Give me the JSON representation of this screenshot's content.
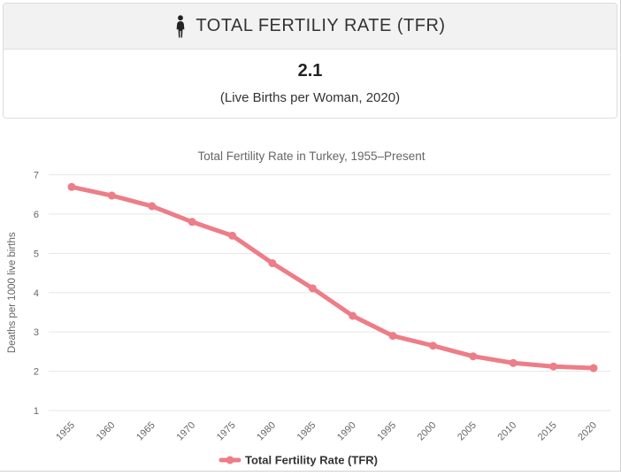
{
  "header": {
    "title": "TOTAL FERTILIY RATE (TFR)",
    "icon": "person-icon"
  },
  "stat": {
    "value": "2.1",
    "caption": "(Live Births per Woman, 2020)"
  },
  "chart_data": {
    "type": "line",
    "title": "Total Fertility Rate in Turkey, 1955–Present",
    "xlabel": "",
    "ylabel": "Deaths per 1000 live births",
    "x": [
      1955,
      1960,
      1965,
      1970,
      1975,
      1980,
      1985,
      1990,
      1995,
      2000,
      2005,
      2010,
      2015,
      2020
    ],
    "series": [
      {
        "name": "Total Fertility Rate (TFR)",
        "color": "#ed7d87",
        "values": [
          6.69,
          6.47,
          6.2,
          5.8,
          5.45,
          4.75,
          4.11,
          3.41,
          2.9,
          2.65,
          2.38,
          2.21,
          2.12,
          2.08
        ]
      }
    ],
    "ylim": [
      1,
      7
    ],
    "yticks": [
      1,
      2,
      3,
      4,
      5,
      6,
      7
    ],
    "grid": true,
    "legend_position": "bottom",
    "colors": {
      "grid": "#e6e6e6",
      "tick_text": "#666666",
      "title_text": "#666666",
      "legend_text": "#333333"
    }
  }
}
